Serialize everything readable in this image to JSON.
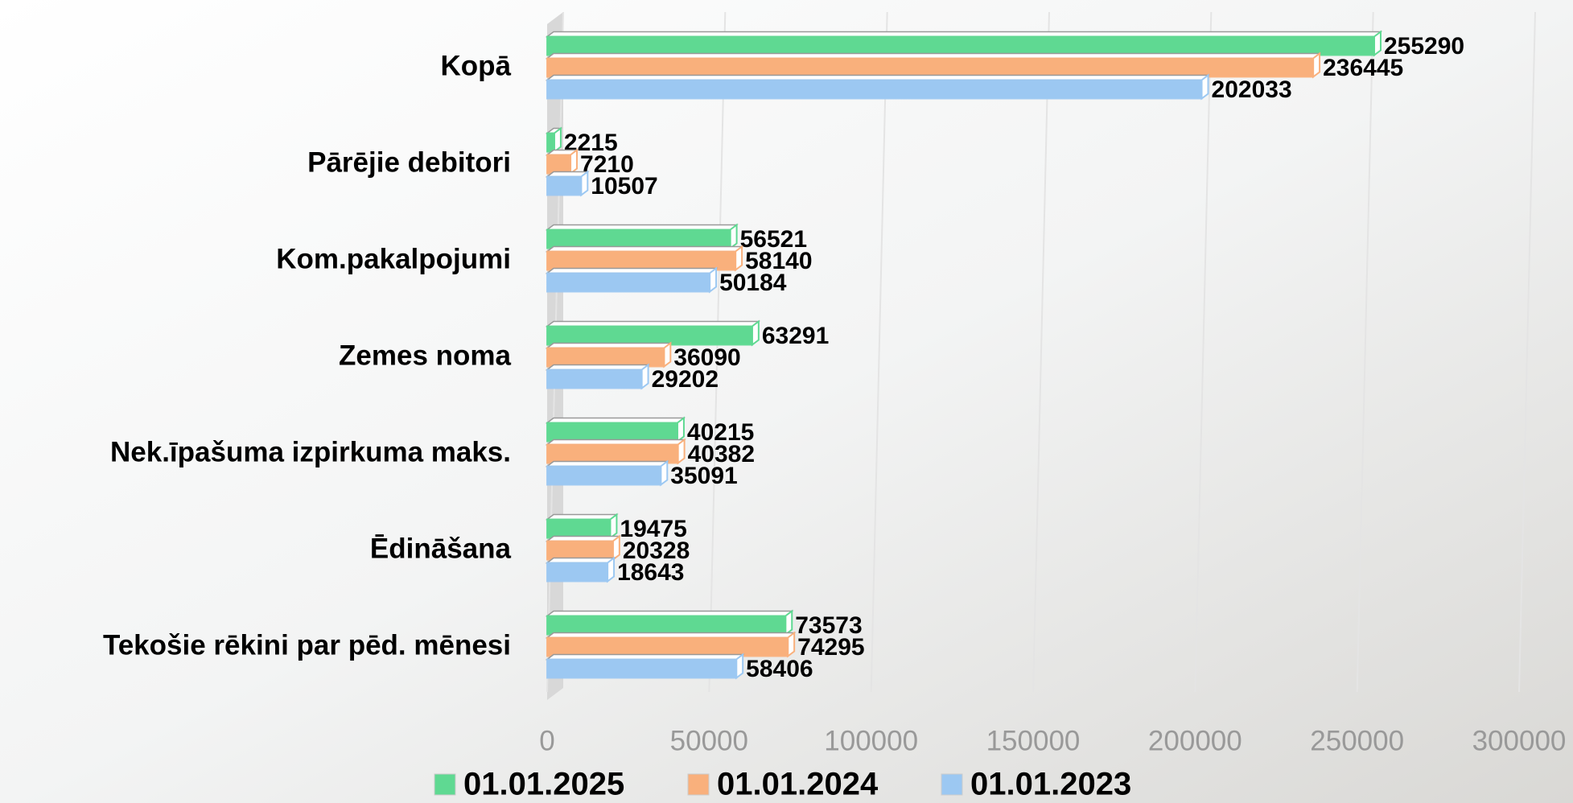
{
  "chart_data": {
    "type": "bar",
    "orientation": "horizontal",
    "categories": [
      "Kopā",
      "Pārējie debitori",
      "Kom.pakalpojumi",
      "Zemes noma",
      "Nek.īpašuma izpirkuma maks.",
      "Ēdināšana",
      "Tekošie rēkini  par pēd. mēnesi"
    ],
    "series": [
      {
        "name": "01.01.2025",
        "color": "#5fd992",
        "values": [
          255290,
          2215,
          56521,
          63291,
          40215,
          19475,
          73573
        ]
      },
      {
        "name": "01.01.2024",
        "color": "#f9b07c",
        "values": [
          236445,
          7210,
          58140,
          36090,
          40382,
          20328,
          74295
        ]
      },
      {
        "name": "01.01.2023",
        "color": "#9cc8f2",
        "values": [
          202033,
          10507,
          50184,
          29202,
          35091,
          18643,
          58406
        ]
      }
    ],
    "xlim": [
      0,
      300000
    ],
    "xticks": [
      0,
      50000,
      100000,
      150000,
      200000,
      250000,
      300000
    ],
    "grid": true,
    "legend": "bottom"
  }
}
